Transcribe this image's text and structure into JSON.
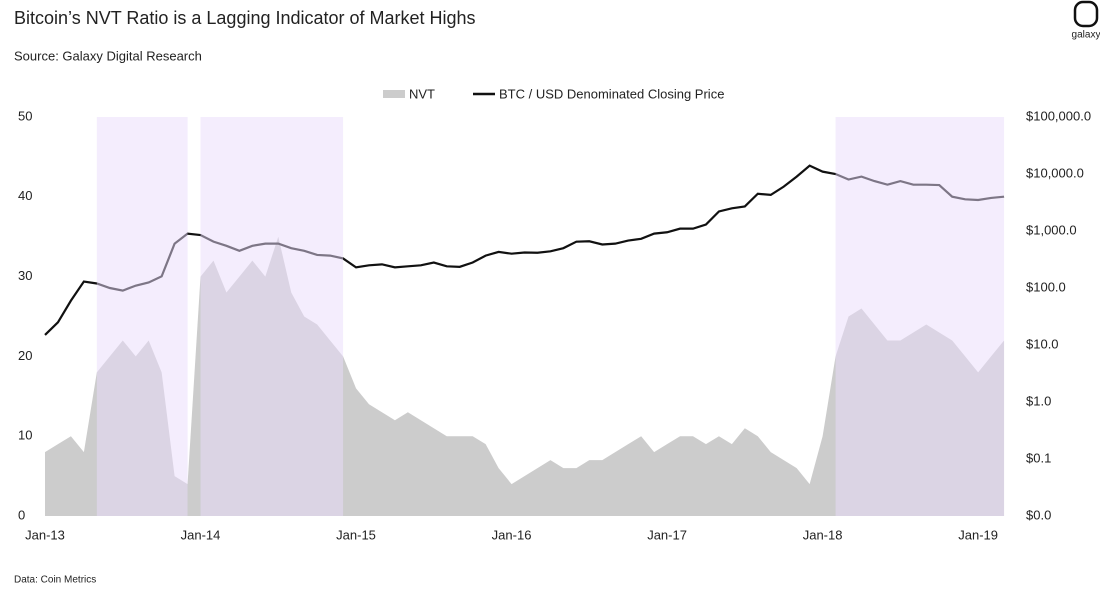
{
  "chart_data": {
    "type": "area-line",
    "title": "Bitcoin’s NVT Ratio is a Lagging Indicator of Market Highs",
    "subtitle": "Source: Galaxy Digital Research",
    "footnote": "Data: Coin Metrics",
    "brand": "galaxy",
    "x": [
      "2013-01",
      "2013-02",
      "2013-03",
      "2013-04",
      "2013-05",
      "2013-06",
      "2013-07",
      "2013-08",
      "2013-09",
      "2013-10",
      "2013-11",
      "2013-12",
      "2014-01",
      "2014-02",
      "2014-03",
      "2014-04",
      "2014-05",
      "2014-06",
      "2014-07",
      "2014-08",
      "2014-09",
      "2014-10",
      "2014-11",
      "2014-12",
      "2015-01",
      "2015-02",
      "2015-03",
      "2015-04",
      "2015-05",
      "2015-06",
      "2015-07",
      "2015-08",
      "2015-09",
      "2015-10",
      "2015-11",
      "2015-12",
      "2016-01",
      "2016-02",
      "2016-03",
      "2016-04",
      "2016-05",
      "2016-06",
      "2016-07",
      "2016-08",
      "2016-09",
      "2016-10",
      "2016-11",
      "2016-12",
      "2017-01",
      "2017-02",
      "2017-03",
      "2017-04",
      "2017-05",
      "2017-06",
      "2017-07",
      "2017-08",
      "2017-09",
      "2017-10",
      "2017-11",
      "2017-12",
      "2018-01",
      "2018-02",
      "2018-03",
      "2018-04",
      "2018-05",
      "2018-06",
      "2018-07",
      "2018-08",
      "2018-09",
      "2018-10",
      "2018-11",
      "2018-12",
      "2019-01",
      "2019-02",
      "2019-03"
    ],
    "series": [
      {
        "name": "NVT",
        "type": "area",
        "axis": "y",
        "color": "#cccccc",
        "values": [
          8,
          9,
          10,
          8,
          18,
          20,
          22,
          20,
          22,
          18,
          5,
          4,
          30,
          32,
          28,
          30,
          32,
          30,
          35,
          28,
          25,
          24,
          22,
          20,
          16,
          14,
          13,
          12,
          13,
          12,
          11,
          10,
          10,
          10,
          9,
          6,
          4,
          5,
          6,
          7,
          6,
          6,
          7,
          7,
          8,
          9,
          10,
          8,
          9,
          10,
          10,
          9,
          10,
          9,
          11,
          10,
          8,
          7,
          6,
          4,
          10,
          20,
          25,
          26,
          24,
          22,
          22,
          23,
          24,
          23,
          22,
          20,
          18,
          20,
          22
        ]
      },
      {
        "name": "BTC / USD Denominated Closing Price",
        "type": "line",
        "axis": "y2",
        "color": "#111111",
        "values": [
          15,
          25,
          60,
          130,
          120,
          100,
          90,
          110,
          125,
          160,
          600,
          900,
          850,
          650,
          550,
          450,
          550,
          600,
          600,
          500,
          450,
          380,
          370,
          330,
          230,
          250,
          260,
          230,
          240,
          250,
          280,
          240,
          235,
          280,
          370,
          430,
          400,
          420,
          415,
          440,
          500,
          650,
          660,
          580,
          600,
          680,
          730,
          900,
          950,
          1100,
          1100,
          1300,
          2200,
          2500,
          2700,
          4500,
          4300,
          6000,
          9000,
          14000,
          11000,
          10000,
          8000,
          9000,
          7500,
          6500,
          7500,
          6500,
          6500,
          6400,
          4000,
          3600,
          3500,
          3800,
          4000
        ]
      }
    ],
    "highlight_periods": [
      [
        "2013-05",
        "2013-12"
      ],
      [
        "2014-01",
        "2014-12"
      ],
      [
        "2018-02",
        "2019-03"
      ]
    ],
    "highlight_color": "#e9dcfb",
    "xticks": [
      {
        "value": "2013-01",
        "label": "Jan-13"
      },
      {
        "value": "2014-01",
        "label": "Jan-14"
      },
      {
        "value": "2015-01",
        "label": "Jan-15"
      },
      {
        "value": "2016-01",
        "label": "Jan-16"
      },
      {
        "value": "2017-01",
        "label": "Jan-17"
      },
      {
        "value": "2018-01",
        "label": "Jan-18"
      },
      {
        "value": "2019-01",
        "label": "Jan-19"
      }
    ],
    "ylim": [
      0,
      50
    ],
    "yticks": [
      0,
      10,
      20,
      30,
      40,
      50
    ],
    "y2lim": [
      0.01,
      100000
    ],
    "y2log": true,
    "y2ticks": [
      {
        "value": 0.01,
        "label": "$0.0"
      },
      {
        "value": 0.1,
        "label": "$0.1"
      },
      {
        "value": 1,
        "label": "$1.0"
      },
      {
        "value": 10,
        "label": "$10.0"
      },
      {
        "value": 100,
        "label": "$100.0"
      },
      {
        "value": 1000,
        "label": "$1,000.0"
      },
      {
        "value": 10000,
        "label": "$10,000.0"
      },
      {
        "value": 100000,
        "label": "$100,000.0"
      }
    ],
    "legend": "top"
  }
}
